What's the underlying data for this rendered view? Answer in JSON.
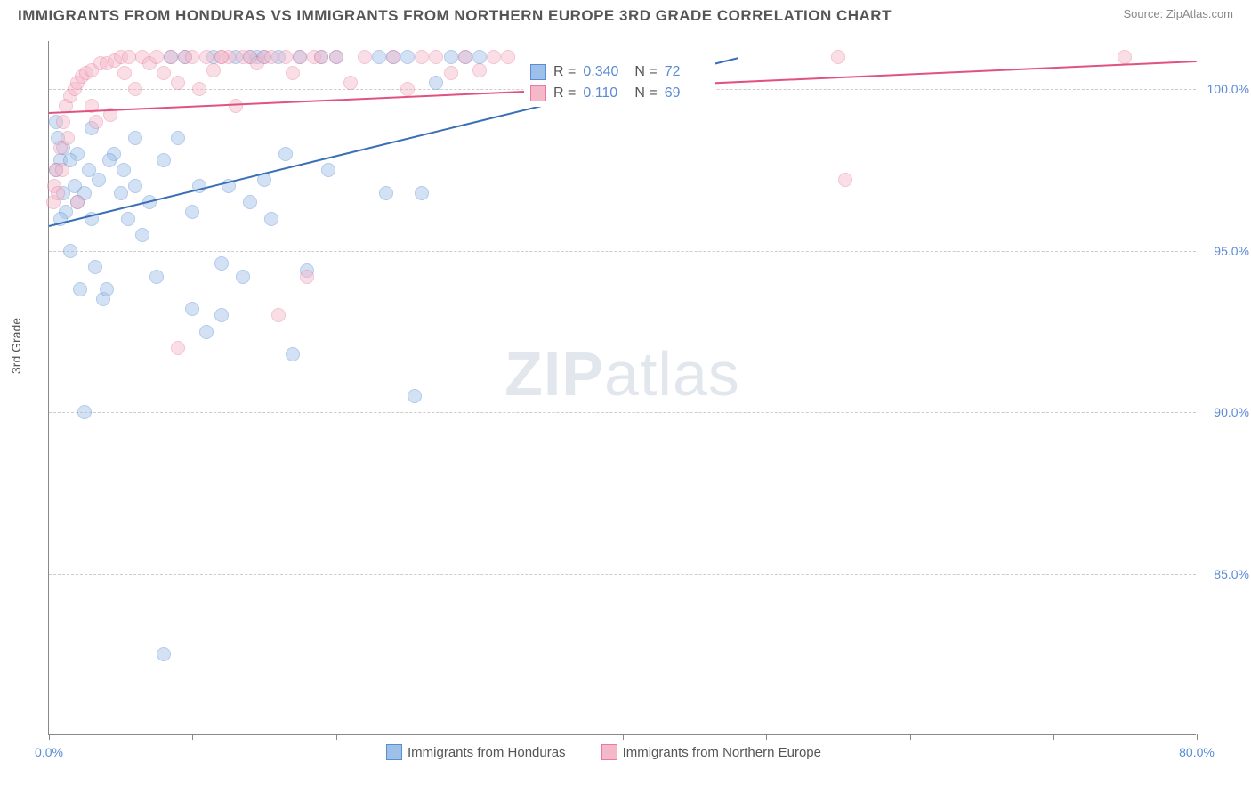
{
  "title": "IMMIGRANTS FROM HONDURAS VS IMMIGRANTS FROM NORTHERN EUROPE 3RD GRADE CORRELATION CHART",
  "source": "Source: ZipAtlas.com",
  "y_axis_label": "3rd Grade",
  "watermark_a": "ZIP",
  "watermark_b": "atlas",
  "chart": {
    "type": "scatter",
    "background_color": "#ffffff",
    "grid_color": "#cccccc",
    "axis_color": "#888888",
    "tick_label_color": "#5b8bd4",
    "text_color": "#555555",
    "xlim": [
      0,
      80
    ],
    "ylim": [
      80,
      101.5
    ],
    "x_tick_positions": [
      0,
      10,
      20,
      30,
      40,
      50,
      60,
      70,
      80
    ],
    "x_tick_labels": {
      "0": "0.0%",
      "80": "80.0%"
    },
    "y_grid_positions": [
      85,
      90,
      95,
      100
    ],
    "y_tick_labels": {
      "85": "85.0%",
      "90": "90.0%",
      "95": "95.0%",
      "100": "100.0%"
    },
    "marker_radius": 8,
    "marker_opacity": 0.45,
    "series": [
      {
        "name": "Immigrants from Honduras",
        "color_fill": "#9cc0e7",
        "color_stroke": "#5b8bd4",
        "r_label": "R =",
        "r_value": "0.340",
        "n_label": "N =",
        "n_value": "72",
        "trend": {
          "x1": 0,
          "y1": 95.8,
          "x2": 48,
          "y2": 101.0,
          "color": "#3a6fb7",
          "width": 2
        },
        "points": [
          [
            0.5,
            99.0
          ],
          [
            0.6,
            98.5
          ],
          [
            0.8,
            97.8
          ],
          [
            1.0,
            96.8
          ],
          [
            1.2,
            96.2
          ],
          [
            1.5,
            95.0
          ],
          [
            1.8,
            97.0
          ],
          [
            2.0,
            96.5
          ],
          [
            2.2,
            93.8
          ],
          [
            2.5,
            90.0
          ],
          [
            2.8,
            97.5
          ],
          [
            3.0,
            96.0
          ],
          [
            3.2,
            94.5
          ],
          [
            3.5,
            97.2
          ],
          [
            3.8,
            93.5
          ],
          [
            4.0,
            93.8
          ],
          [
            4.5,
            98.0
          ],
          [
            5.0,
            96.8
          ],
          [
            5.2,
            97.5
          ],
          [
            5.5,
            96.0
          ],
          [
            6.0,
            97.0
          ],
          [
            6.5,
            95.5
          ],
          [
            7.0,
            96.5
          ],
          [
            7.5,
            94.2
          ],
          [
            8.0,
            97.8
          ],
          [
            8.5,
            101.0
          ],
          [
            9.0,
            98.5
          ],
          [
            9.5,
            101.0
          ],
          [
            10.0,
            96.2
          ],
          [
            10.5,
            97.0
          ],
          [
            11.0,
            92.5
          ],
          [
            11.5,
            101.0
          ],
          [
            12.0,
            94.6
          ],
          [
            12.5,
            97.0
          ],
          [
            13.0,
            101.0
          ],
          [
            13.5,
            94.2
          ],
          [
            14.0,
            96.5
          ],
          [
            14.5,
            101.0
          ],
          [
            15.0,
            97.2
          ],
          [
            15.5,
            96.0
          ],
          [
            16.0,
            101.0
          ],
          [
            16.5,
            98.0
          ],
          [
            17.0,
            91.8
          ],
          [
            17.5,
            101.0
          ],
          [
            18.0,
            94.4
          ],
          [
            19.0,
            101.0
          ],
          [
            19.5,
            97.5
          ],
          [
            20.0,
            101.0
          ],
          [
            23.0,
            101.0
          ],
          [
            23.5,
            96.8
          ],
          [
            24.0,
            101.0
          ],
          [
            25.0,
            101.0
          ],
          [
            25.5,
            90.5
          ],
          [
            26.0,
            96.8
          ],
          [
            27.0,
            100.2
          ],
          [
            28.0,
            101.0
          ],
          [
            29.0,
            101.0
          ],
          [
            30.0,
            101.0
          ],
          [
            8.0,
            82.5
          ],
          [
            10.0,
            93.2
          ],
          [
            12.0,
            93.0
          ],
          [
            6.0,
            98.5
          ],
          [
            4.2,
            97.8
          ],
          [
            3.0,
            98.8
          ],
          [
            2.0,
            98.0
          ],
          [
            1.0,
            98.2
          ],
          [
            0.8,
            96.0
          ],
          [
            0.5,
            97.5
          ],
          [
            1.5,
            97.8
          ],
          [
            2.5,
            96.8
          ],
          [
            14.0,
            101.0
          ],
          [
            15.0,
            101.0
          ]
        ]
      },
      {
        "name": "Immigrants from Northern Europe",
        "color_fill": "#f4b8c8",
        "color_stroke": "#e77ba0",
        "r_label": "R =",
        "r_value": "0.110",
        "n_label": "N =",
        "n_value": "69",
        "trend": {
          "x1": 0,
          "y1": 99.3,
          "x2": 80,
          "y2": 100.9,
          "color": "#e0527f",
          "width": 2
        },
        "points": [
          [
            0.3,
            96.5
          ],
          [
            0.5,
            97.5
          ],
          [
            0.8,
            98.2
          ],
          [
            1.0,
            99.0
          ],
          [
            1.2,
            99.5
          ],
          [
            1.5,
            99.8
          ],
          [
            1.8,
            100.0
          ],
          [
            2.0,
            100.2
          ],
          [
            2.3,
            100.4
          ],
          [
            2.6,
            100.5
          ],
          [
            3.0,
            100.6
          ],
          [
            3.3,
            99.0
          ],
          [
            3.6,
            100.8
          ],
          [
            4.0,
            100.8
          ],
          [
            4.3,
            99.2
          ],
          [
            4.6,
            100.9
          ],
          [
            5.0,
            101.0
          ],
          [
            5.3,
            100.5
          ],
          [
            5.6,
            101.0
          ],
          [
            6.0,
            100.0
          ],
          [
            6.5,
            101.0
          ],
          [
            7.0,
            100.8
          ],
          [
            7.5,
            101.0
          ],
          [
            8.0,
            100.5
          ],
          [
            8.5,
            101.0
          ],
          [
            9.0,
            100.2
          ],
          [
            9.5,
            101.0
          ],
          [
            10.0,
            101.0
          ],
          [
            10.5,
            100.0
          ],
          [
            11.0,
            101.0
          ],
          [
            11.5,
            100.6
          ],
          [
            12.0,
            101.0
          ],
          [
            12.5,
            101.0
          ],
          [
            13.0,
            99.5
          ],
          [
            13.5,
            101.0
          ],
          [
            14.0,
            101.0
          ],
          [
            14.5,
            100.8
          ],
          [
            15.0,
            101.0
          ],
          [
            15.5,
            101.0
          ],
          [
            16.0,
            93.0
          ],
          [
            16.5,
            101.0
          ],
          [
            17.0,
            100.5
          ],
          [
            17.5,
            101.0
          ],
          [
            18.0,
            94.2
          ],
          [
            18.5,
            101.0
          ],
          [
            19.0,
            101.0
          ],
          [
            20.0,
            101.0
          ],
          [
            21.0,
            100.2
          ],
          [
            22.0,
            101.0
          ],
          [
            24.0,
            101.0
          ],
          [
            25.0,
            100.0
          ],
          [
            26.0,
            101.0
          ],
          [
            27.0,
            101.0
          ],
          [
            28.0,
            100.5
          ],
          [
            29.0,
            101.0
          ],
          [
            30.0,
            100.6
          ],
          [
            31.0,
            101.0
          ],
          [
            32.0,
            101.0
          ],
          [
            55.0,
            101.0
          ],
          [
            55.5,
            97.2
          ],
          [
            75.0,
            101.0
          ],
          [
            0.4,
            97.0
          ],
          [
            0.6,
            96.8
          ],
          [
            0.9,
            97.5
          ],
          [
            1.3,
            98.5
          ],
          [
            9.0,
            92.0
          ],
          [
            2.0,
            96.5
          ],
          [
            3.0,
            99.5
          ],
          [
            12.0,
            101.0
          ]
        ]
      }
    ]
  },
  "legend": {
    "series1_label": "Immigrants from Honduras",
    "series2_label": "Immigrants from Northern Europe"
  }
}
